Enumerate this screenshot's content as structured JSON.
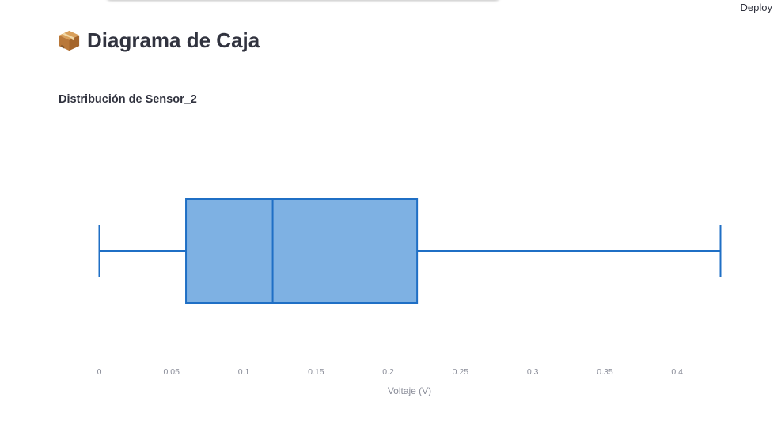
{
  "header": {
    "deploy_label": "Deploy"
  },
  "page": {
    "title": "Diagrama de Caja",
    "title_icon": "package-icon"
  },
  "chart_data": {
    "type": "box",
    "title": "Distribución de Sensor_2",
    "xlabel": "Voltaje (V)",
    "ylabel": "",
    "orientation": "horizontal",
    "xlim": [
      0,
      0.43
    ],
    "x_ticks": [
      0,
      0.05,
      0.1,
      0.15,
      0.2,
      0.25,
      0.3,
      0.35,
      0.4
    ],
    "x_tick_labels": [
      "0",
      "0.05",
      "0.1",
      "0.15",
      "0.2",
      "0.25",
      "0.3",
      "0.35",
      "0.4"
    ],
    "box": {
      "min": 0,
      "q1": 0.06,
      "median": 0.12,
      "q3": 0.22,
      "max": 0.43
    },
    "colors": {
      "line": "#1f6fc5",
      "fill": "#7eb1e3"
    },
    "grid": false,
    "legend": "none"
  }
}
